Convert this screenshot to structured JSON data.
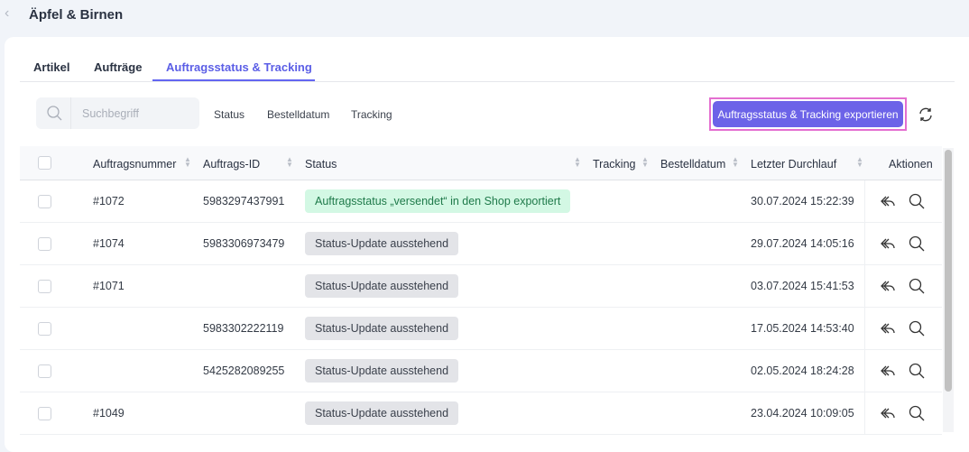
{
  "header": {
    "title": "Äpfel & Birnen"
  },
  "tabs": [
    {
      "label": "Artikel"
    },
    {
      "label": "Aufträge"
    },
    {
      "label": "Auftragsstatus & Tracking",
      "active": true
    }
  ],
  "toolbar": {
    "search_placeholder": "Suchbegriff",
    "filters": [
      "Status",
      "Bestelldatum",
      "Tracking"
    ],
    "export_label": "Auftragsstatus & Tracking exportieren",
    "accent": "#6c63e8"
  },
  "table": {
    "columns": [
      "Auftragsnummer",
      "Auftrags-ID",
      "Status",
      "Tracking",
      "Bestelldatum",
      "Letzter Durchlauf",
      "Aktionen"
    ],
    "rows": [
      {
        "nummer": "#1072",
        "id": "5983297437991",
        "status": "Auftragsstatus „versendet“ in den Shop exportiert",
        "status_type": "success",
        "tracking": "",
        "bestelldatum": "",
        "durchlauf": "30.07.2024 15:22:39"
      },
      {
        "nummer": "#1074",
        "id": "5983306973479",
        "status": "Status-Update ausstehend",
        "status_type": "pending",
        "tracking": "",
        "bestelldatum": "",
        "durchlauf": "29.07.2024 14:05:16"
      },
      {
        "nummer": "#1071",
        "id": "",
        "status": "Status-Update ausstehend",
        "status_type": "pending",
        "tracking": "",
        "bestelldatum": "",
        "durchlauf": "03.07.2024 15:41:53"
      },
      {
        "nummer": "",
        "id": "5983302222119",
        "status": "Status-Update ausstehend",
        "status_type": "pending",
        "tracking": "",
        "bestelldatum": "",
        "durchlauf": "17.05.2024 14:53:40"
      },
      {
        "nummer": "",
        "id": "5425282089255",
        "status": "Status-Update ausstehend",
        "status_type": "pending",
        "tracking": "",
        "bestelldatum": "",
        "durchlauf": "02.05.2024 18:24:28"
      },
      {
        "nummer": "#1049",
        "id": "",
        "status": "Status-Update ausstehend",
        "status_type": "pending",
        "tracking": "",
        "bestelldatum": "",
        "durchlauf": "23.04.2024 10:09:05"
      }
    ]
  }
}
